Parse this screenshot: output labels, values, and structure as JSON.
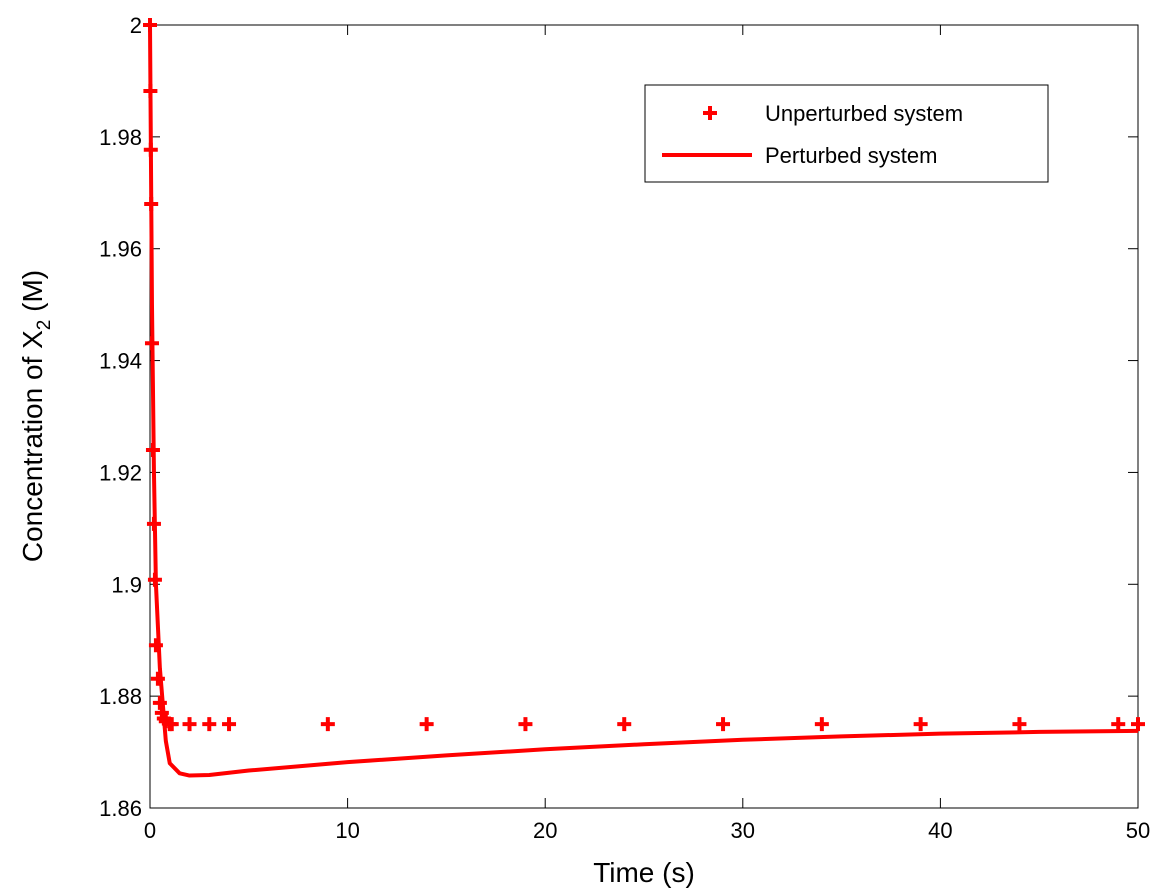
{
  "chart_data": {
    "type": "line",
    "xlabel": "Time (s)",
    "ylabel": {
      "text": "Concentration of X",
      "sub": "2",
      "suffix": " (M)"
    },
    "xlim": [
      0,
      50
    ],
    "xticks": [
      0,
      10,
      20,
      30,
      40,
      50
    ],
    "ylim": [
      1.86,
      2
    ],
    "yticks": [
      1.86,
      1.88,
      1.9,
      1.92,
      1.94,
      1.96,
      1.98,
      2
    ],
    "legend": "upper right",
    "series": [
      {
        "name": "Unperturbed system",
        "color": "#ff0000",
        "style": "markers",
        "x": [
          0,
          0.02,
          0.04,
          0.06,
          0.1,
          0.15,
          0.2,
          0.25,
          0.3,
          0.4,
          0.5,
          0.6,
          0.7,
          0.8,
          1.0,
          1.1,
          2.0,
          3.0,
          4.0,
          9.0,
          14.0,
          19.0,
          24.0,
          29.0,
          34.0,
          39.0,
          44.0,
          49.0,
          50.0
        ],
        "values": [
          2,
          1.9882,
          1.9777,
          1.968,
          1.9431,
          1.924,
          1.9108,
          1.9008,
          1.8891,
          1.8831,
          1.8788,
          1.877,
          1.876,
          1.8755,
          1.875,
          1.875,
          1.875,
          1.875,
          1.875,
          1.875,
          1.875,
          1.875,
          1.875,
          1.875,
          1.875,
          1.875,
          1.875,
          1.875,
          1.875
        ]
      },
      {
        "name": "Perturbed system",
        "color": "#ff0000",
        "style": "line",
        "x": [
          0,
          0.1,
          0.2,
          0.3,
          0.5,
          0.8,
          1.0,
          1.5,
          2,
          3,
          5,
          10,
          15,
          20,
          25,
          30,
          35,
          40,
          45,
          50
        ],
        "values": [
          2,
          1.95,
          1.92,
          1.9,
          1.885,
          1.872,
          1.868,
          1.8662,
          1.8658,
          1.8659,
          1.8667,
          1.8682,
          1.8694,
          1.8705,
          1.8714,
          1.8722,
          1.8728,
          1.8733,
          1.8736,
          1.8738
        ]
      }
    ]
  }
}
